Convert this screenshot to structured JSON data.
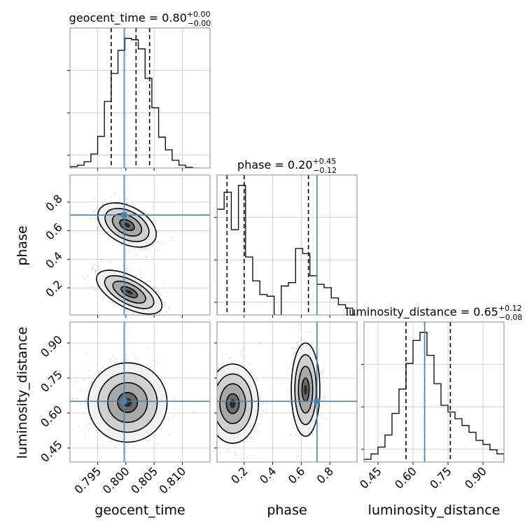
{
  "chart_data": {
    "type": "corner",
    "parameters": [
      "geocent_time",
      "phase",
      "luminosity_distance"
    ],
    "truth": {
      "geocent_time": 0.7997,
      "phase": 0.71,
      "luminosity_distance": 0.65
    },
    "grid": true,
    "colors": {
      "truth": "#4682b4",
      "hist": "#000000",
      "frame": "#888888",
      "grid": "#c8c8c8"
    },
    "axes": {
      "geocent_time": {
        "range": [
          0.7901,
          0.8149
        ],
        "ticks": [
          0.795,
          0.8,
          0.805,
          0.81
        ],
        "tick_labels": [
          "0.795",
          "0.800",
          "0.805",
          "0.810"
        ]
      },
      "phase": {
        "range": [
          0.01,
          0.99
        ],
        "ticks": [
          0.2,
          0.4,
          0.6,
          0.8
        ],
        "tick_labels": [
          "0.2",
          "0.4",
          "0.6",
          "0.8"
        ]
      },
      "luminosity_distance": {
        "range": [
          0.39,
          0.99
        ],
        "ticks": [
          0.45,
          0.6,
          0.75,
          0.9
        ],
        "tick_labels": [
          "0.45",
          "0.60",
          "0.75",
          "0.90"
        ]
      }
    },
    "titles": [
      {
        "param": "geocent_time",
        "prefix": "geocent_time = ",
        "median": "0.80",
        "plus": "+0.00",
        "minus": "−0.00"
      },
      {
        "param": "phase",
        "prefix": "phase = ",
        "median": "0.20",
        "plus": "+0.45",
        "minus": "−0.12"
      },
      {
        "param": "luminosity_distance",
        "prefix": "luminosity_distance = ",
        "median": "0.65",
        "plus": "+0.12",
        "minus": "−0.08"
      }
    ],
    "histograms": [
      {
        "param": "geocent_time",
        "bin_edges": [
          0.7902,
          0.7914,
          0.7926,
          0.7938,
          0.795,
          0.7962,
          0.7974,
          0.7986,
          0.7998,
          0.801,
          0.8022,
          0.8034,
          0.8046,
          0.8058,
          0.807,
          0.8082,
          0.8094,
          0.8106,
          0.8118,
          0.813
        ],
        "counts": [
          2,
          4,
          9,
          20,
          45,
          95,
          135,
          168,
          185,
          183,
          170,
          128,
          86,
          44,
          26,
          11,
          4,
          1,
          0
        ],
        "quantiles": [
          0.7974,
          0.8018,
          0.8042
        ]
      },
      {
        "param": "phase",
        "bin_edges": [
          0.01,
          0.06,
          0.11,
          0.16,
          0.21,
          0.26,
          0.31,
          0.36,
          0.41,
          0.46,
          0.51,
          0.56,
          0.61,
          0.66,
          0.71,
          0.76,
          0.81,
          0.86,
          0.91,
          0.96
        ],
        "counts": [
          62,
          72,
          50,
          76,
          34,
          20,
          12,
          11,
          0,
          17,
          19,
          39,
          36,
          23,
          18,
          16,
          10,
          6,
          4
        ],
        "quantiles": [
          0.08,
          0.2,
          0.65
        ]
      },
      {
        "param": "luminosity_distance",
        "bin_edges": [
          0.39,
          0.42,
          0.45,
          0.48,
          0.51,
          0.54,
          0.57,
          0.6,
          0.63,
          0.66,
          0.69,
          0.72,
          0.75,
          0.78,
          0.81,
          0.84,
          0.87,
          0.9,
          0.93,
          0.96,
          0.99
        ],
        "counts": [
          2,
          6,
          11,
          20,
          36,
          54,
          73,
          90,
          96,
          79,
          58,
          42,
          37,
          32,
          27,
          22,
          16,
          13,
          9,
          6
        ],
        "quantiles": [
          0.57,
          0.65,
          0.76
        ]
      }
    ],
    "pairs": [
      {
        "x": "geocent_time",
        "y": "phase",
        "clusters": [
          {
            "center": [
              0.8002,
              0.64
            ],
            "width": [
              0.0028,
              0.065
            ],
            "correlation": -0.55
          },
          {
            "center": [
              0.8006,
              0.17
            ],
            "width": [
              0.0032,
              0.055
            ],
            "correlation": -0.45
          }
        ]
      },
      {
        "x": "geocent_time",
        "y": "luminosity_distance",
        "clusters": [
          {
            "center": [
              0.8003,
              0.645
            ],
            "width": [
              0.0035,
              0.085
            ],
            "correlation": 0.0
          }
        ]
      },
      {
        "x": "phase",
        "y": "luminosity_distance",
        "clusters": [
          {
            "center": [
              0.12,
              0.64
            ],
            "width": [
              0.09,
              0.085
            ],
            "correlation": 0.0
          },
          {
            "center": [
              0.63,
              0.7
            ],
            "width": [
              0.05,
              0.1
            ],
            "correlation": 0.0
          }
        ]
      }
    ],
    "axis_labels": {
      "geocent_time": "geocent_time",
      "phase": "phase",
      "luminosity_distance": "luminosity_distance"
    }
  }
}
